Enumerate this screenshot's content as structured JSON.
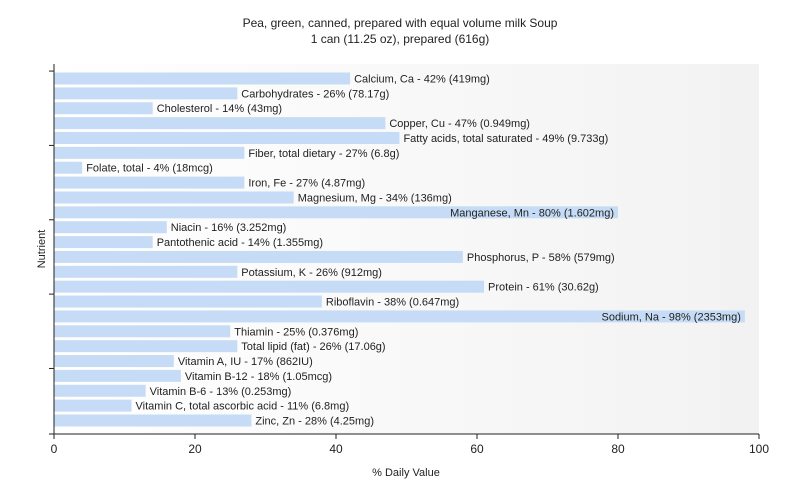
{
  "chart_data": {
    "type": "bar",
    "orientation": "horizontal",
    "title": "Pea, green, canned, prepared with equal volume milk Soup",
    "subtitle": "1 can (11.25 oz), prepared (616g)",
    "xlabel": "% Daily Value",
    "ylabel": "Nutrient",
    "xlim": [
      0,
      100
    ],
    "xticks": [
      0,
      20,
      40,
      60,
      80,
      100
    ],
    "grid": false,
    "bar_color": "#c6dcf6",
    "categories": [
      "Calcium, Ca",
      "Carbohydrates",
      "Cholesterol",
      "Copper, Cu",
      "Fatty acids, total saturated",
      "Fiber, total dietary",
      "Folate, total",
      "Iron, Fe",
      "Magnesium, Mg",
      "Manganese, Mn",
      "Niacin",
      "Pantothenic acid",
      "Phosphorus, P",
      "Potassium, K",
      "Protein",
      "Riboflavin",
      "Sodium, Na",
      "Thiamin",
      "Total lipid (fat)",
      "Vitamin A, IU",
      "Vitamin B-12",
      "Vitamin B-6",
      "Vitamin C, total ascorbic acid",
      "Zinc, Zn"
    ],
    "values": [
      42,
      26,
      14,
      47,
      49,
      27,
      4,
      27,
      34,
      80,
      16,
      14,
      58,
      26,
      61,
      38,
      98,
      25,
      26,
      17,
      18,
      13,
      11,
      28
    ],
    "labels": [
      "Calcium, Ca - 42% (419mg)",
      "Carbohydrates - 26% (78.17g)",
      "Cholesterol - 14% (43mg)",
      "Copper, Cu - 47% (0.949mg)",
      "Fatty acids, total saturated - 49% (9.733g)",
      "Fiber, total dietary - 27% (6.8g)",
      "Folate, total - 4% (18mcg)",
      "Iron, Fe - 27% (4.87mg)",
      "Magnesium, Mg - 34% (136mg)",
      "Manganese, Mn - 80% (1.602mg)",
      "Niacin - 16% (3.252mg)",
      "Pantothenic acid - 14% (1.355mg)",
      "Phosphorus, P - 58% (579mg)",
      "Potassium, K - 26% (912mg)",
      "Protein - 61% (30.62g)",
      "Riboflavin - 38% (0.647mg)",
      "Sodium, Na - 98% (2353mg)",
      "Thiamin - 25% (0.376mg)",
      "Total lipid (fat) - 26% (17.06g)",
      "Vitamin A, IU - 17% (862IU)",
      "Vitamin B-12 - 18% (1.05mcg)",
      "Vitamin B-6 - 13% (0.253mg)",
      "Vitamin C, total ascorbic acid - 11% (6.8mg)",
      "Zinc, Zn - 28% (4.25mg)"
    ]
  }
}
